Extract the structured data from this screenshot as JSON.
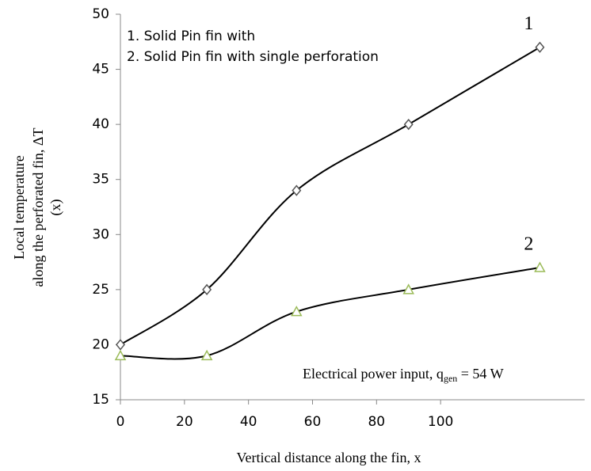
{
  "chart_data": {
    "type": "line",
    "xlabel": "Vertical distance along the fin, x",
    "ylabel": [
      "Local temperature",
      "along the perforated fin, ΔT",
      "(x)"
    ],
    "legend_text": [
      "1. Solid Pin fin with",
      "2. Solid Pin fin with single perforation"
    ],
    "annotation": {
      "text": "Electrical power input, q",
      "subscript": "gen",
      "suffix": " = 54 W"
    },
    "series": [
      {
        "name": "1",
        "color": "#555555",
        "marker": "diamond",
        "x": [
          0,
          27,
          55,
          90,
          131
        ],
        "values": [
          20,
          25,
          34,
          40,
          47
        ]
      },
      {
        "name": "2",
        "color": "#9bbb59",
        "marker": "triangle",
        "x": [
          0,
          27,
          55,
          90,
          131
        ],
        "values": [
          19,
          19,
          23,
          25,
          27
        ]
      }
    ],
    "xlim": [
      0,
      145
    ],
    "xticks": [
      0,
      20,
      40,
      60,
      80,
      100
    ],
    "ylim": [
      15,
      50
    ],
    "yticks": [
      15,
      20,
      25,
      30,
      35,
      40,
      45,
      50
    ]
  }
}
